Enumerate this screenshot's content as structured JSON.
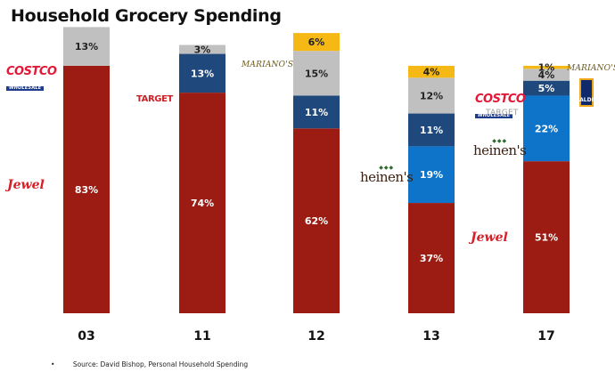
{
  "title": "Household Grocery Spending",
  "footnote": {
    "bullet": "•",
    "text": "Source: David Bishop, Personal Household Spending"
  },
  "logos": {
    "costco_word": "COSTCO",
    "costco_sub": "WHOLESALE",
    "jewel": "Jewel",
    "target": "TARGET",
    "marianos": "MARIANO'S",
    "heinens": "heinen's",
    "aldi": "ALDI"
  },
  "colors": {
    "jewel": "#9c1c14",
    "heinens": "#0e74c9",
    "target": "#1f497d",
    "costco": "#c0c0c0",
    "marianos": "#f5b814"
  },
  "chart_data": {
    "type": "bar",
    "stacked": true,
    "categories": [
      "03",
      "11",
      "12",
      "13",
      "17"
    ],
    "ylim": [
      0,
      100
    ],
    "grid": false,
    "stacks": [
      {
        "category": "03",
        "segments": [
          {
            "store": "Jewel",
            "value": 83,
            "label": "83%"
          },
          {
            "store": "Costco",
            "value": 13,
            "label": "13%"
          }
        ]
      },
      {
        "category": "11",
        "segments": [
          {
            "store": "Jewel",
            "value": 74,
            "label": "74%"
          },
          {
            "store": "Target",
            "value": 13,
            "label": "13%"
          },
          {
            "store": "Costco",
            "value": 3,
            "label": "3%"
          }
        ]
      },
      {
        "category": "12",
        "segments": [
          {
            "store": "Jewel",
            "value": 62,
            "label": "62%"
          },
          {
            "store": "Target",
            "value": 11,
            "label": "11%"
          },
          {
            "store": "Costco",
            "value": 15,
            "label": "15%"
          },
          {
            "store": "Mariano's",
            "value": 6,
            "label": "6%"
          }
        ]
      },
      {
        "category": "13",
        "segments": [
          {
            "store": "Jewel",
            "value": 37,
            "label": "37%"
          },
          {
            "store": "Heinen's",
            "value": 19,
            "label": "19%"
          },
          {
            "store": "Target",
            "value": 11,
            "label": "11%"
          },
          {
            "store": "Costco",
            "value": 12,
            "label": "12%"
          },
          {
            "store": "Mariano's",
            "value": 4,
            "label": "4%"
          }
        ]
      },
      {
        "category": "17",
        "segments": [
          {
            "store": "Jewel",
            "value": 51,
            "label": "51%"
          },
          {
            "store": "Heinen's",
            "value": 22,
            "label": "22%"
          },
          {
            "store": "Target",
            "value": 5,
            "label": "5%"
          },
          {
            "store": "Costco",
            "value": 4,
            "label": "4%"
          },
          {
            "store": "Mariano's",
            "value": 1,
            "label": "1%"
          }
        ]
      }
    ]
  }
}
